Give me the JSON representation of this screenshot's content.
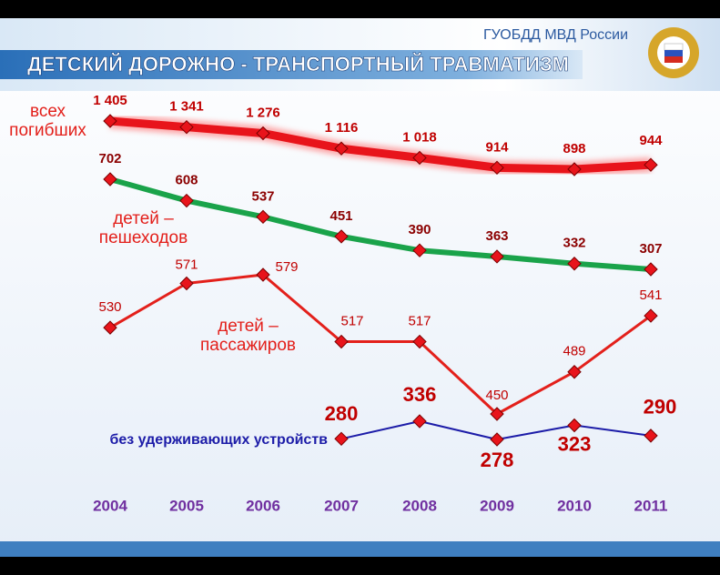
{
  "header": {
    "org": "ГУОБДД МВД России",
    "title": "ДЕТСКИЙ ДОРОЖНО - ТРАНСПОРТНЫЙ ТРАВМАТИЗМ"
  },
  "chart_data": {
    "type": "line",
    "categories": [
      "2004",
      "2005",
      "2006",
      "2007",
      "2008",
      "2009",
      "2010",
      "2011"
    ],
    "series": [
      {
        "name": "всех погибших",
        "color": "#e8141b",
        "values": [
          1405,
          1341,
          1276,
          1116,
          1018,
          914,
          898,
          944
        ],
        "value_labels": [
          "1 405",
          "1 341",
          "1 276",
          "1 116",
          "1 018",
          "914",
          "898",
          "944"
        ]
      },
      {
        "name": "детей – пешеходов",
        "color": "#1aa34a",
        "values": [
          702,
          608,
          537,
          451,
          390,
          363,
          332,
          307
        ]
      },
      {
        "name": "детей – пассажиров",
        "color": "#e3201b",
        "values": [
          530,
          571,
          579,
          517,
          517,
          450,
          489,
          541
        ]
      },
      {
        "name": "без удерживающих устройств",
        "color": "#1c1ca8",
        "values": [
          null,
          null,
          null,
          280,
          336,
          278,
          323,
          290
        ]
      }
    ]
  }
}
